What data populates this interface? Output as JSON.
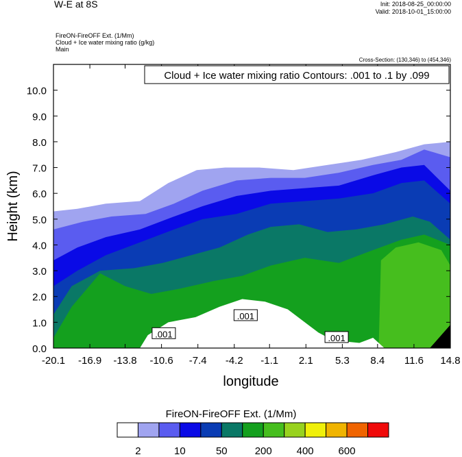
{
  "header": {
    "title": "W-E at 8S",
    "init": "Init: 2018-08-25_00:00:00",
    "valid": "Valid: 2018-10-01_15:00:00",
    "subtitle_lines": [
      "FireON-FireOFF Ext.   (1/Mm)",
      "Cloud + Ice water mixing ratio   (g/kg)",
      "Main"
    ],
    "cross_section": "Cross-Section: (130,346) to (454,346)"
  },
  "chart_data": {
    "type": "heatmap",
    "xlabel": "longitude",
    "ylabel": "Height (km)",
    "xlim": [
      -20.1,
      14.8
    ],
    "ylim": [
      0.0,
      11.0
    ],
    "x_ticks": [
      "-20.1",
      "-16.9",
      "-13.8",
      "-10.6",
      "-7.4",
      "-4.2",
      "-1.1",
      "2.1",
      "5.3",
      "8.4",
      "11.6",
      "14.8"
    ],
    "y_ticks": [
      "0.0",
      "1.0",
      "2.0",
      "3.0",
      "4.0",
      "5.0",
      "6.0",
      "7.0",
      "8.0",
      "9.0",
      "10.0"
    ],
    "contour_annotation": "Cloud + Ice water mixing ratio Contours: .001 to .1 by .099",
    "contour_labels": [
      {
        "text": ".001",
        "x": -10.4,
        "y": 0.55
      },
      {
        "text": ".001",
        "x": -3.2,
        "y": 1.25
      },
      {
        "text": ".001",
        "x": 4.8,
        "y": 0.4
      }
    ],
    "colorbar": {
      "title": "FireON-FireOFF Ext.  (1/Mm)",
      "colors": [
        "#ffffff",
        "#a0a4f0",
        "#5a5cf0",
        "#0a0ae6",
        "#0a3cb4",
        "#0a7866",
        "#14a01e",
        "#46be1e",
        "#98d21e",
        "#f0f00a",
        "#f0b400",
        "#f06400",
        "#f00a0a"
      ],
      "labels": [
        "2",
        "10",
        "50",
        "200",
        "400",
        "600"
      ]
    },
    "ext_field": {
      "levels": [
        {
          "fill": "#a0a4f0",
          "top": [
            [
              -20.1,
              5.3
            ],
            [
              -18,
              5.4
            ],
            [
              -15.5,
              5.6
            ],
            [
              -12.5,
              5.7
            ],
            [
              -10,
              6.4
            ],
            [
              -7.5,
              6.9
            ],
            [
              -5,
              7.0
            ],
            [
              -2,
              7.0
            ],
            [
              1,
              6.9
            ],
            [
              4,
              7.1
            ],
            [
              7,
              7.3
            ],
            [
              10,
              7.6
            ],
            [
              12.5,
              7.9
            ],
            [
              14.8,
              8.0
            ]
          ]
        },
        {
          "fill": "#5a5cf0",
          "top": [
            [
              -20.1,
              4.6
            ],
            [
              -17.5,
              4.9
            ],
            [
              -15,
              5.1
            ],
            [
              -12,
              5.2
            ],
            [
              -9.5,
              5.6
            ],
            [
              -7,
              6.1
            ],
            [
              -4,
              6.5
            ],
            [
              -1,
              6.6
            ],
            [
              2,
              6.6
            ],
            [
              5,
              6.8
            ],
            [
              8,
              7.1
            ],
            [
              10.5,
              7.3
            ],
            [
              12.5,
              7.7
            ],
            [
              14.8,
              7.4
            ]
          ]
        },
        {
          "fill": "#0a0ae6",
          "top": [
            [
              -20.1,
              3.4
            ],
            [
              -18,
              3.9
            ],
            [
              -15.5,
              4.3
            ],
            [
              -12.5,
              4.6
            ],
            [
              -9.5,
              5.1
            ],
            [
              -7,
              5.5
            ],
            [
              -4,
              5.9
            ],
            [
              -1,
              6.1
            ],
            [
              2,
              6.2
            ],
            [
              5,
              6.3
            ],
            [
              8,
              6.7
            ],
            [
              10.5,
              7.0
            ],
            [
              12.5,
              7.1
            ],
            [
              14.8,
              6.1
            ]
          ]
        },
        {
          "fill": "#0a3cb4",
          "top": [
            [
              -20.1,
              2.4
            ],
            [
              -18,
              3.0
            ],
            [
              -15.5,
              3.6
            ],
            [
              -12.5,
              4.1
            ],
            [
              -9.5,
              4.6
            ],
            [
              -7,
              5.0
            ],
            [
              -4,
              5.2
            ],
            [
              -1,
              5.6
            ],
            [
              2,
              5.7
            ],
            [
              5,
              5.8
            ],
            [
              8,
              6.0
            ],
            [
              10.5,
              6.4
            ],
            [
              12.5,
              6.5
            ],
            [
              14.8,
              5.6
            ]
          ]
        },
        {
          "fill": "#0a7866",
          "top": [
            [
              -20.1,
              1.3
            ],
            [
              -18.5,
              2.4
            ],
            [
              -16,
              3.0
            ],
            [
              -13,
              3.1
            ],
            [
              -10.5,
              3.3
            ],
            [
              -8,
              3.6
            ],
            [
              -5.5,
              3.9
            ],
            [
              -3,
              4.4
            ],
            [
              -1,
              4.7
            ],
            [
              1.5,
              4.8
            ],
            [
              4,
              4.5
            ],
            [
              6.5,
              4.6
            ],
            [
              9,
              4.8
            ],
            [
              11.5,
              5.1
            ],
            [
              13,
              4.9
            ],
            [
              14.8,
              4.2
            ]
          ]
        },
        {
          "fill": "#14a01e",
          "top": [
            [
              -20.1,
              0.4
            ],
            [
              -18.5,
              1.6
            ],
            [
              -16,
              2.9
            ],
            [
              -13.8,
              2.4
            ],
            [
              -11.5,
              2.1
            ],
            [
              -9,
              2.3
            ],
            [
              -6,
              2.6
            ],
            [
              -3.5,
              2.8
            ],
            [
              -1,
              3.2
            ],
            [
              2,
              3.5
            ],
            [
              5,
              3.3
            ],
            [
              8,
              3.8
            ],
            [
              10.5,
              4.2
            ],
            [
              12.5,
              4.4
            ],
            [
              14.8,
              4.0
            ]
          ]
        },
        {
          "fill": "#46be1e",
          "top": [
            [
              8.5,
              0.0
            ],
            [
              8.7,
              3.4
            ],
            [
              10,
              3.9
            ],
            [
              12,
              4.1
            ],
            [
              14,
              3.8
            ],
            [
              14.8,
              3.2
            ],
            [
              14.8,
              0.0
            ]
          ]
        }
      ],
      "white_gap": [
        [
          -11.8,
          0.5
        ],
        [
          -10,
          1.0
        ],
        [
          -7.6,
          1.2
        ],
        [
          -5.5,
          1.6
        ],
        [
          -3.5,
          1.9
        ],
        [
          -1.5,
          1.8
        ],
        [
          0.5,
          1.5
        ],
        [
          2.3,
          0.9
        ],
        [
          3.2,
          0.6
        ],
        [
          4.5,
          0.3
        ],
        [
          6.8,
          0.2
        ],
        [
          8,
          0.4
        ],
        [
          9,
          0.0
        ],
        [
          -12.5,
          0.0
        ]
      ]
    }
  }
}
